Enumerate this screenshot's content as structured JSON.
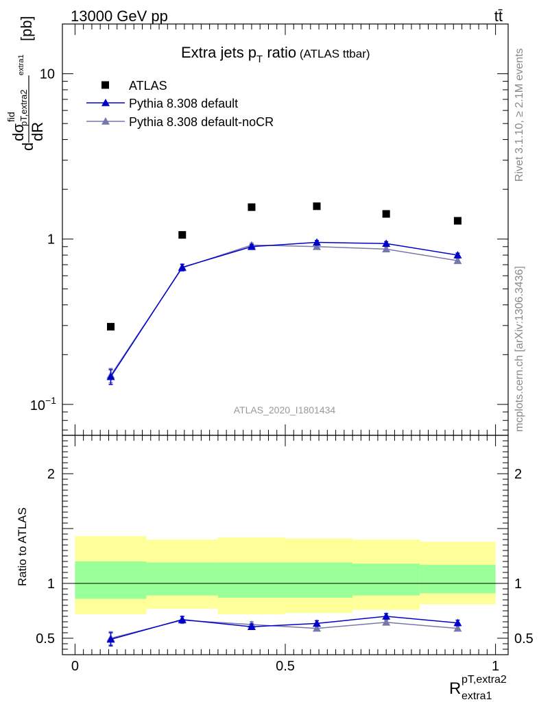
{
  "header": {
    "process": "13000 GeV pp",
    "final_state": "tt̄"
  },
  "side_labels": {
    "rivet": "Rivet 3.1.10, ≥ 2.1M events",
    "mcplots": "mcplots.cern.ch [arXiv:1306.3436]"
  },
  "analysis_id": "ATLAS_2020_I1801434",
  "chart_data": [
    {
      "type": "scatter",
      "panel": "main",
      "title": "Extra jets p_T ratio",
      "title_main": "Extra jets p",
      "title_sub": "T",
      "title_rest": " ratio",
      "title_note": "(ATLAS ttbar)",
      "ylabel_parts": {
        "d1": "d",
        "dsigma": "dσ",
        "fid": "fid",
        "pt": "pT,extra2",
        "dR": "dR",
        "extra1": "extra1",
        "unit": "[pb]"
      },
      "yscale": "log",
      "ylim": [
        0.065,
        20
      ],
      "xlim": [
        -0.03,
        1.03
      ],
      "yticks": [
        {
          "v": 0.1,
          "base": "10",
          "exp": "−1"
        },
        {
          "v": 1,
          "label": "1"
        },
        {
          "v": 10,
          "label": "10"
        }
      ],
      "legend_position": "top-left",
      "x": [
        0.085,
        0.255,
        0.42,
        0.575,
        0.74,
        0.91
      ],
      "series": [
        {
          "name": "ATLAS",
          "color": "#000000",
          "marker": "square",
          "line": false,
          "values": [
            0.295,
            1.06,
            1.56,
            1.58,
            1.42,
            1.29
          ]
        },
        {
          "name": "Pythia 8.308 default",
          "color": "#0000cc",
          "marker": "triangle",
          "line": true,
          "values": [
            0.147,
            0.675,
            0.9,
            0.955,
            0.94,
            0.8
          ],
          "errors": [
            0.015,
            0.03,
            0.025,
            0.025,
            0.025,
            0.022
          ]
        },
        {
          "name": "Pythia 8.308 default-noCR",
          "color": "#7777aa",
          "marker": "triangle",
          "line": true,
          "values": [
            0.15,
            0.67,
            0.92,
            0.9,
            0.87,
            0.74
          ],
          "errors": [
            0.015,
            0.03,
            0.025,
            0.025,
            0.025,
            0.022
          ]
        }
      ]
    },
    {
      "type": "scatter",
      "panel": "ratio",
      "ylabel": "Ratio to ATLAS",
      "xlabel_main": "R",
      "xlabel_sup": "pT,extra2",
      "xlabel_sub": "extra1",
      "ylim": [
        0.35,
        2.35
      ],
      "xlim": [
        -0.03,
        1.03
      ],
      "xticks": [
        {
          "v": 0,
          "label": "0"
        },
        {
          "v": 0.5,
          "label": "0.5"
        },
        {
          "v": 1,
          "label": "1"
        }
      ],
      "yticks": [
        {
          "v": 0.5,
          "label": "0.5"
        },
        {
          "v": 1,
          "label": "1"
        },
        {
          "v": 2,
          "label": "2"
        }
      ],
      "bands": [
        {
          "x0": 0.0,
          "x1": 0.17,
          "yellow": [
            0.72,
            1.43
          ],
          "green": [
            0.86,
            1.2
          ]
        },
        {
          "x0": 0.17,
          "x1": 0.34,
          "yellow": [
            0.77,
            1.4
          ],
          "green": [
            0.89,
            1.19
          ]
        },
        {
          "x0": 0.34,
          "x1": 0.5,
          "yellow": [
            0.72,
            1.42
          ],
          "green": [
            0.87,
            1.19
          ]
        },
        {
          "x0": 0.5,
          "x1": 0.66,
          "yellow": [
            0.73,
            1.41
          ],
          "green": [
            0.87,
            1.19
          ]
        },
        {
          "x0": 0.66,
          "x1": 0.82,
          "yellow": [
            0.76,
            1.4
          ],
          "green": [
            0.89,
            1.18
          ]
        },
        {
          "x0": 0.82,
          "x1": 1.0,
          "yellow": [
            0.81,
            1.38
          ],
          "green": [
            0.91,
            1.17
          ]
        }
      ],
      "x": [
        0.085,
        0.255,
        0.42,
        0.575,
        0.74,
        0.91
      ],
      "series": [
        {
          "name": "Pythia 8.308 default",
          "color": "#0000cc",
          "values": [
            0.49,
            0.67,
            0.605,
            0.635,
            0.7,
            0.64
          ],
          "errors": [
            0.06,
            0.03,
            0.025,
            0.025,
            0.025,
            0.025
          ]
        },
        {
          "name": "Pythia 8.308 default-noCR",
          "color": "#7777aa",
          "values": [
            0.5,
            0.665,
            0.625,
            0.59,
            0.645,
            0.59
          ],
          "errors": [
            0.06,
            0.03,
            0.025,
            0.02,
            0.02,
            0.02
          ]
        }
      ]
    }
  ]
}
